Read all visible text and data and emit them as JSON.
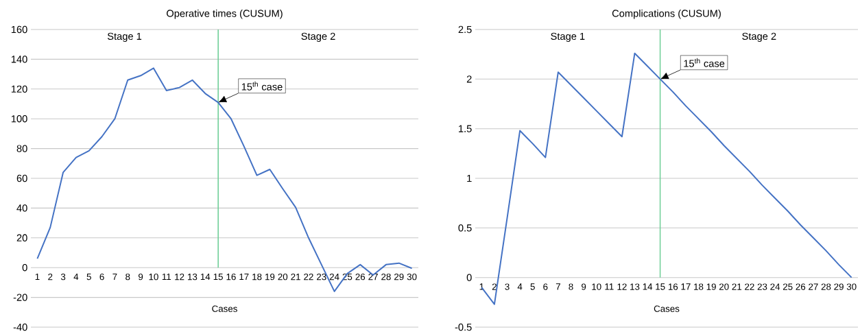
{
  "chart_data": [
    {
      "type": "line",
      "title": "Operative times (CUSUM)",
      "xlabel": "Cases",
      "x": [
        1,
        2,
        3,
        4,
        5,
        6,
        7,
        8,
        9,
        10,
        11,
        12,
        13,
        14,
        15,
        16,
        17,
        18,
        19,
        20,
        21,
        22,
        23,
        24,
        25,
        26,
        27,
        28,
        29,
        30
      ],
      "series": [
        {
          "color": "#4472c4",
          "values": [
            6,
            27,
            64,
            74,
            78.5,
            88,
            100,
            126,
            129,
            134,
            119,
            121,
            126,
            117,
            111,
            100,
            81.5,
            62,
            66,
            53,
            40.5,
            20,
            2,
            -16,
            -4,
            2,
            -5,
            2,
            3,
            -0.5
          ]
        }
      ],
      "xlim": [
        0.5,
        30.5
      ],
      "xticks": [
        1,
        2,
        3,
        4,
        5,
        6,
        7,
        8,
        9,
        10,
        11,
        12,
        13,
        14,
        15,
        16,
        17,
        18,
        19,
        20,
        21,
        22,
        23,
        24,
        25,
        26,
        27,
        28,
        29,
        30
      ],
      "ylim": [
        -40,
        160
      ],
      "yticks": [
        -40,
        -20,
        0,
        20,
        40,
        60,
        80,
        100,
        120,
        140,
        160
      ],
      "grid": "y",
      "marker": "none",
      "ref_lines": [
        {
          "axis": "x",
          "value": 15,
          "color": "#6fcf97"
        }
      ],
      "annotations": [
        "Stage 1",
        "Stage 2",
        {
          "text": "15$^{th}$ case",
          "x": 15,
          "y": 111
        }
      ]
    },
    {
      "type": "line",
      "title": "Complications (CUSUM)",
      "xlabel": "Cases",
      "x": [
        1,
        2,
        3,
        4,
        5,
        6,
        7,
        8,
        9,
        10,
        11,
        12,
        13,
        14,
        15,
        16,
        17,
        18,
        19,
        20,
        21,
        22,
        23,
        24,
        25,
        26,
        27,
        28,
        29,
        30
      ],
      "series": [
        {
          "color": "#4472c4",
          "values": [
            -0.1,
            -0.27,
            0.6,
            1.48,
            1.35,
            1.21,
            2.07,
            1.94,
            1.81,
            1.68,
            1.55,
            1.42,
            2.26,
            2.13,
            2.0,
            1.87,
            1.73,
            1.6,
            1.47,
            1.33,
            1.2,
            1.07,
            0.93,
            0.8,
            0.67,
            0.53,
            0.4,
            0.27,
            0.13,
            0
          ]
        }
      ],
      "xlim": [
        0.5,
        30.5
      ],
      "xticks": [
        1,
        2,
        3,
        4,
        5,
        6,
        7,
        8,
        9,
        10,
        11,
        12,
        13,
        14,
        15,
        16,
        17,
        18,
        19,
        20,
        21,
        22,
        23,
        24,
        25,
        26,
        27,
        28,
        29,
        30
      ],
      "ylim": [
        -0.5,
        2.5
      ],
      "yticks": [
        -0.5,
        0,
        0.5,
        1,
        1.5,
        2,
        2.5
      ],
      "grid": "y",
      "marker": "none",
      "ref_lines": [
        {
          "axis": "x",
          "value": 15,
          "color": "#6fcf97"
        }
      ],
      "annotations": [
        "Stage 1",
        "Stage 2",
        {
          "text": "15$^{th}$ case",
          "x": 15,
          "y": 2
        }
      ]
    }
  ]
}
